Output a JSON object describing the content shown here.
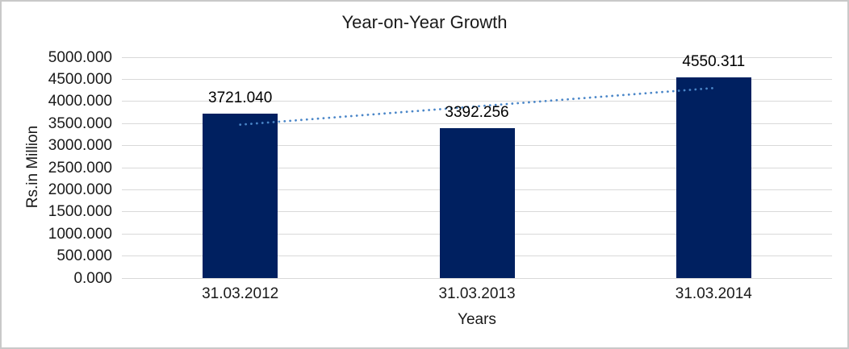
{
  "window": {
    "background": "#ffffff",
    "border_color": "#c9c9c9"
  },
  "chart_data": {
    "type": "bar",
    "title": "Year-on-Year Growth",
    "xlabel": "Years",
    "ylabel": "Rs.in Million",
    "categories": [
      "31.03.2012",
      "31.03.2013",
      "31.03.2014"
    ],
    "values": [
      3721.04,
      3392.256,
      4550.311
    ],
    "data_labels": [
      "3721.040",
      "3392.256",
      "4550.311"
    ],
    "ylim": [
      0,
      5000
    ],
    "ytick_step": 500,
    "ytick_labels": [
      "0.000",
      "500.000",
      "1000.000",
      "1500.000",
      "2000.000",
      "2500.000",
      "3000.000",
      "3500.000",
      "4000.000",
      "4500.000",
      "5000.000"
    ],
    "grid": true,
    "legend": "none",
    "bar_color": "#002060",
    "gridline_color": "#d9d9d9",
    "text_color": "#1a1a1a",
    "trendline": {
      "type": "linear",
      "style": "dotted",
      "color": "#4a86c8"
    }
  }
}
